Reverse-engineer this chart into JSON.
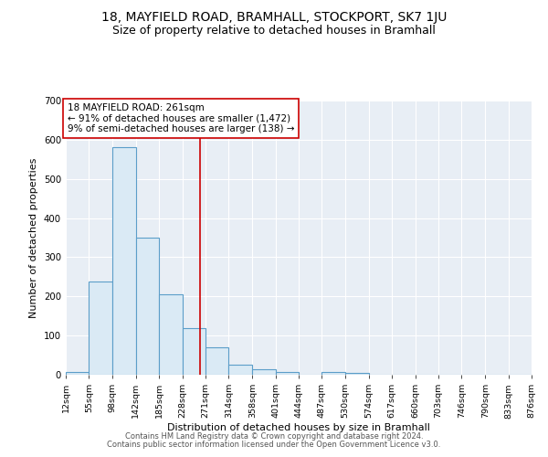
{
  "title": "18, MAYFIELD ROAD, BRAMHALL, STOCKPORT, SK7 1JU",
  "subtitle": "Size of property relative to detached houses in Bramhall",
  "xlabel": "Distribution of detached houses by size in Bramhall",
  "ylabel": "Number of detached properties",
  "bin_edges": [
    12,
    55,
    98,
    142,
    185,
    228,
    271,
    314,
    358,
    401,
    444,
    487,
    530,
    574,
    617,
    660,
    703,
    746,
    790,
    833,
    876
  ],
  "bar_heights": [
    8,
    237,
    580,
    350,
    205,
    120,
    70,
    25,
    13,
    8,
    0,
    7,
    5,
    0,
    0,
    0,
    0,
    0,
    0,
    0
  ],
  "bar_facecolor": "#daeaf5",
  "bar_edgecolor": "#5b9ec9",
  "bar_linewidth": 0.8,
  "vline_x": 261,
  "vline_color": "#cc0000",
  "vline_linewidth": 1.2,
  "annotation_text": "18 MAYFIELD ROAD: 261sqm\n← 91% of detached houses are smaller (1,472)\n9% of semi-detached houses are larger (138) →",
  "annotation_box_edgecolor": "#cc0000",
  "annotation_box_facecolor": "white",
  "annotation_fontsize": 7.5,
  "ylim": [
    0,
    700
  ],
  "yticks": [
    0,
    100,
    200,
    300,
    400,
    500,
    600,
    700
  ],
  "plot_bg_color": "#e8eef5",
  "fig_bg_color": "#ffffff",
  "title_fontsize": 10,
  "subtitle_fontsize": 9,
  "tick_fontsize": 6.8,
  "ylabel_fontsize": 8,
  "xlabel_fontsize": 8,
  "footer_text1": "Contains HM Land Registry data © Crown copyright and database right 2024.",
  "footer_text2": "Contains public sector information licensed under the Open Government Licence v3.0.",
  "footer_fontsize": 6.0
}
